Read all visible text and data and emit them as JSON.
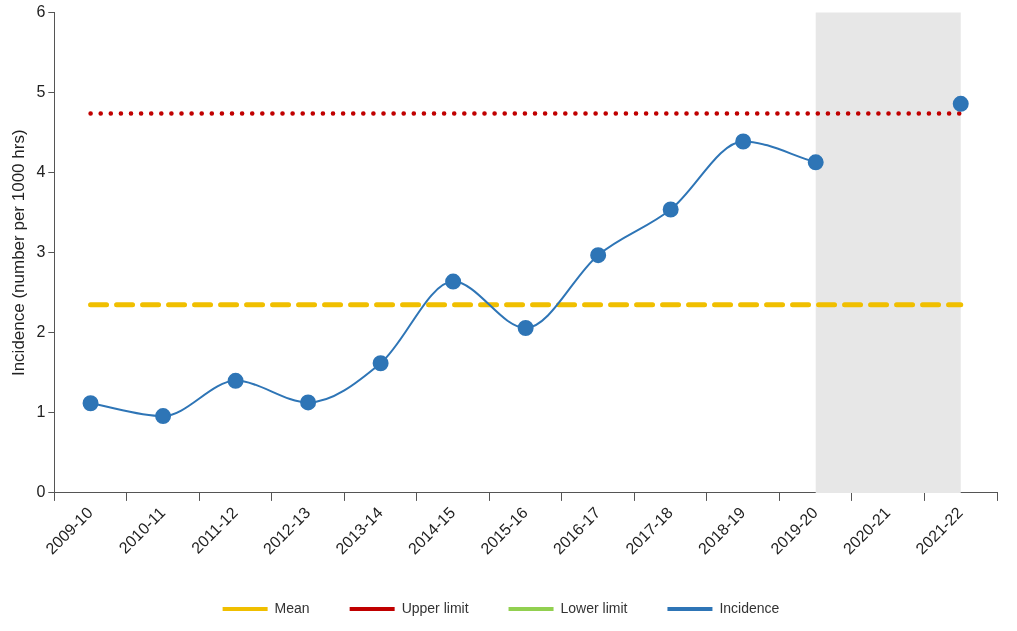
{
  "chart_data": {
    "type": "line",
    "ylabel": "Incidence (number per 1000 hrs)",
    "categories": [
      "2009-10",
      "2010-11",
      "2011-12",
      "2012-13",
      "2013-14",
      "2014-15",
      "2015-16",
      "2016-17",
      "2017-18",
      "2018-19",
      "2019-20",
      "2020-21",
      "2021-22"
    ],
    "ylim": [
      0,
      6
    ],
    "yticks": [
      0,
      1,
      2,
      3,
      4,
      5,
      6
    ],
    "grid": false,
    "legend": "bottom",
    "series": [
      {
        "name": "Mean",
        "color": "#f0bf00",
        "line_style": "dashed",
        "marker": "none",
        "values": [
          2.35,
          2.35,
          2.35,
          2.35,
          2.35,
          2.35,
          2.35,
          2.35,
          2.35,
          2.35,
          2.35,
          2.35,
          2.35
        ]
      },
      {
        "name": "Upper limit",
        "color": "#c00000",
        "line_style": "dotted",
        "marker": "none",
        "values": [
          4.74,
          4.74,
          4.74,
          4.74,
          4.74,
          4.74,
          4.74,
          4.74,
          4.74,
          4.74,
          4.74,
          4.74,
          4.74
        ]
      },
      {
        "name": "Lower limit",
        "color": "#92d050",
        "line_style": "dotted",
        "marker": "none",
        "values": [
          null,
          null,
          null,
          null,
          null,
          null,
          null,
          null,
          null,
          null,
          null,
          null,
          null
        ]
      },
      {
        "name": "Incidence",
        "color": "#2e75b6",
        "line_style": "solid",
        "marker": "circle",
        "values": [
          1.12,
          0.96,
          1.4,
          1.13,
          1.62,
          2.64,
          2.06,
          2.97,
          3.54,
          4.39,
          4.13,
          null,
          4.86
        ]
      }
    ],
    "bands": [
      {
        "axis": "x",
        "from": "2019-20",
        "to": "2021-22",
        "color": "#e7e7e7"
      }
    ]
  }
}
